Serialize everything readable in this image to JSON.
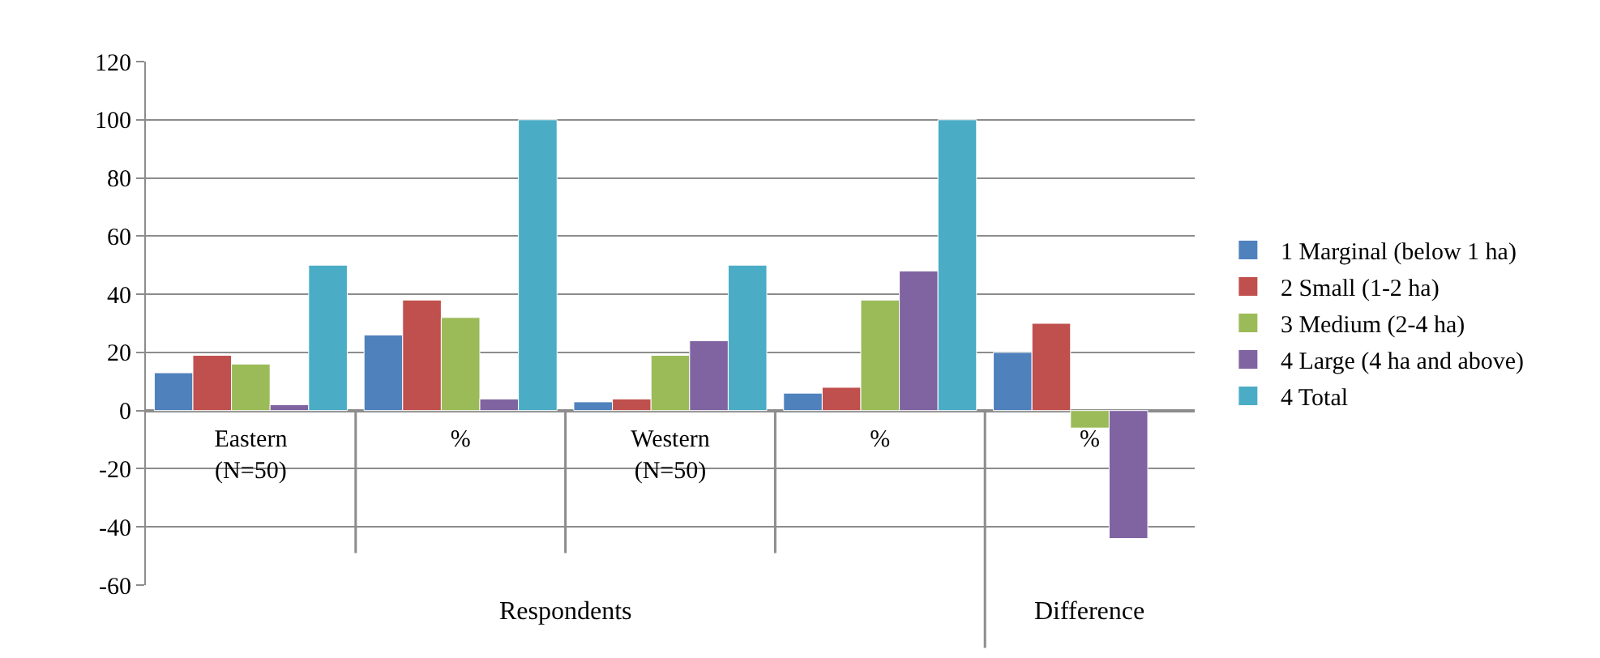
{
  "chart_data": {
    "type": "bar",
    "categories": [
      "Eastern (N=50)",
      "%",
      "Western (N=50)",
      "%",
      "%"
    ],
    "series": [
      {
        "name": "1 Marginal (below 1 ha)",
        "color": "#4f81bd",
        "values": [
          13,
          26,
          3,
          6,
          20
        ]
      },
      {
        "name": "2 Small (1-2 ha)",
        "color": "#c0504d",
        "values": [
          19,
          38,
          4,
          8,
          30
        ]
      },
      {
        "name": "3 Medium (2-4 ha)",
        "color": "#9bbb59",
        "values": [
          16,
          32,
          19,
          38,
          -6
        ]
      },
      {
        "name": "4 Large (4 ha and above)",
        "color": "#8064a2",
        "values": [
          2,
          4,
          24,
          48,
          -44
        ]
      },
      {
        "name": "4 Total",
        "color": "#4bacc6",
        "values": [
          50,
          100,
          50,
          100,
          null
        ]
      }
    ],
    "annotations": [
      "Respondents",
      "Difference"
    ],
    "ylim": [
      -60,
      120
    ],
    "yticks": [
      -60,
      -40,
      -20,
      0,
      20,
      40,
      60,
      80,
      100,
      120
    ],
    "grid": "y",
    "legend": "right"
  }
}
